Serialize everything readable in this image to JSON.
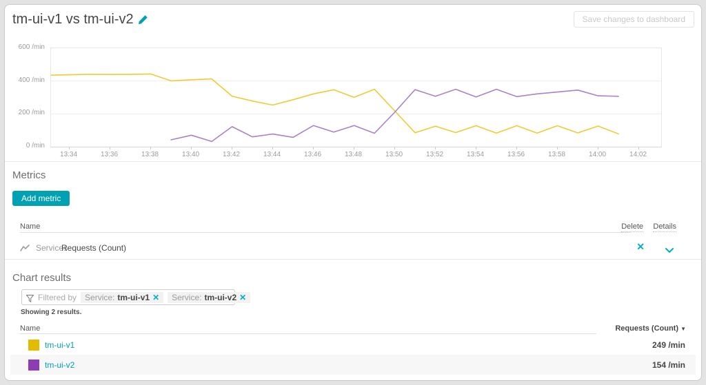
{
  "header": {
    "title": "tm-ui-v1 vs tm-ui-v2",
    "save_button": "Save changes to dashboard"
  },
  "colors": {
    "accent_teal": "#00a1b2",
    "icon_teal": "#00aec6",
    "series1_swatch": "#e3bc00",
    "series1_line": "#eecb35",
    "series2_swatch": "#8d3cb3",
    "series2_line": "#a881c9"
  },
  "chart_data": {
    "type": "line",
    "unit": "/min",
    "ylim": [
      0,
      600
    ],
    "grid_values": [
      200,
      400
    ],
    "y_ticks": [
      {
        "value": 600,
        "label": "600 /min"
      },
      {
        "value": 400,
        "label": "400 /min"
      },
      {
        "value": 200,
        "label": "200 /min"
      },
      {
        "value": 0,
        "label": "0 /min"
      }
    ],
    "x_domain": [
      -0.9,
      29.1
    ],
    "x_ticks": [
      {
        "m": 0,
        "label": "13:34"
      },
      {
        "m": 2,
        "label": "13:36"
      },
      {
        "m": 4,
        "label": "13:38"
      },
      {
        "m": 6,
        "label": "13:40"
      },
      {
        "m": 8,
        "label": "13:42"
      },
      {
        "m": 10,
        "label": "13:44"
      },
      {
        "m": 12,
        "label": "13:46"
      },
      {
        "m": 14,
        "label": "13:48"
      },
      {
        "m": 16,
        "label": "13:50"
      },
      {
        "m": 18,
        "label": "13:52"
      },
      {
        "m": 20,
        "label": "13:54"
      },
      {
        "m": 22,
        "label": "13:56"
      },
      {
        "m": 24,
        "label": "13:58"
      },
      {
        "m": 26,
        "label": "14:00"
      },
      {
        "m": 28,
        "label": "14:02"
      }
    ],
    "series": [
      {
        "name": "tm-ui-v1",
        "line_color": "#eecb35",
        "points": [
          [
            -1,
            435
          ],
          [
            0,
            438
          ],
          [
            1,
            441
          ],
          [
            2,
            440
          ],
          [
            3,
            441
          ],
          [
            4,
            443
          ],
          [
            5,
            401
          ],
          [
            6,
            408
          ],
          [
            7,
            413
          ],
          [
            8,
            308
          ],
          [
            9,
            278
          ],
          [
            10,
            254
          ],
          [
            11,
            286
          ],
          [
            12,
            322
          ],
          [
            13,
            347
          ],
          [
            14,
            301
          ],
          [
            15,
            350
          ],
          [
            16,
            218
          ],
          [
            17,
            85
          ],
          [
            18,
            125
          ],
          [
            19,
            86
          ],
          [
            20,
            128
          ],
          [
            21,
            83
          ],
          [
            22,
            128
          ],
          [
            23,
            83
          ],
          [
            24,
            128
          ],
          [
            25,
            84
          ],
          [
            26,
            126
          ],
          [
            27,
            78
          ]
        ]
      },
      {
        "name": "tm-ui-v2",
        "line_color": "#a881c9",
        "points": [
          [
            5,
            42
          ],
          [
            6,
            70
          ],
          [
            7,
            32
          ],
          [
            8,
            122
          ],
          [
            9,
            60
          ],
          [
            10,
            77
          ],
          [
            11,
            57
          ],
          [
            12,
            129
          ],
          [
            13,
            89
          ],
          [
            14,
            129
          ],
          [
            15,
            82
          ],
          [
            16,
            210
          ],
          [
            17,
            348
          ],
          [
            18,
            307
          ],
          [
            19,
            350
          ],
          [
            20,
            303
          ],
          [
            21,
            350
          ],
          [
            22,
            305
          ],
          [
            23,
            322
          ],
          [
            24,
            333
          ],
          [
            25,
            345
          ],
          [
            26,
            310
          ],
          [
            27,
            307
          ]
        ]
      }
    ]
  },
  "metrics": {
    "heading": "Metrics",
    "add_button": "Add metric",
    "table": {
      "name_header": "Name",
      "delete_header": "Delete",
      "details_header": "Details",
      "rows": [
        {
          "category": "Services",
          "metric": "Requests (Count)"
        }
      ]
    }
  },
  "chart_results": {
    "heading": "Chart results",
    "filtered_by": "Filtered by",
    "filters": [
      {
        "label": "Service:",
        "value": "tm-ui-v1"
      },
      {
        "label": "Service:",
        "value": "tm-ui-v2"
      }
    ],
    "showing": "Showing 2 results.",
    "table": {
      "name_header": "Name",
      "value_header": "Requests (Count)",
      "sort_caret": "▼",
      "rows": [
        {
          "name": "tm-ui-v1",
          "swatch_color": "#e3bc00",
          "value": "249 /min"
        },
        {
          "name": "tm-ui-v2",
          "swatch_color": "#8d3cb3",
          "value": "154 /min"
        }
      ]
    }
  }
}
